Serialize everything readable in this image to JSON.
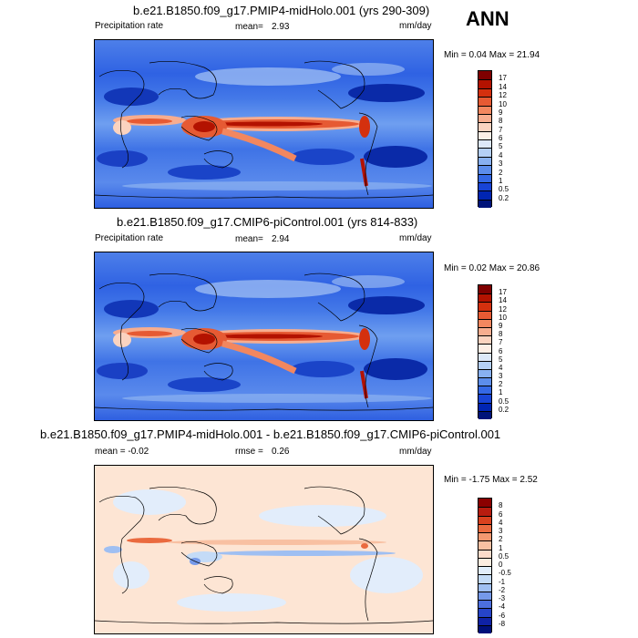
{
  "season_label": "ANN",
  "panels": [
    {
      "id": "top",
      "title": "b.e21.B1850.f09_g17.PMIP4-midHolo.001 (yrs 290-309)",
      "left_label": "Precipitation rate",
      "stat_label": "mean=",
      "stat_value": "2.93",
      "units": "mm/day",
      "minmax": "Min =   0.04 Max =  21.94",
      "colorbar": {
        "labels": [
          "17",
          "14",
          "12",
          "10",
          "9",
          "8",
          "7",
          "6",
          "5",
          "4",
          "3",
          "2",
          "1",
          "0.5",
          "0.2"
        ],
        "colors": [
          "#7f0000",
          "#b31200",
          "#d4300e",
          "#e65a33",
          "#f2875f",
          "#f7ad8f",
          "#fbd3c0",
          "#fdeee6",
          "#dde8f9",
          "#b4cff6",
          "#88b0f0",
          "#5c8deb",
          "#3468e5",
          "#1844d6",
          "#0025b3",
          "#00147a"
        ]
      }
    },
    {
      "id": "middle",
      "title": "b.e21.B1850.f09_g17.CMIP6-piControl.001 (yrs 814-833)",
      "left_label": "Precipitation rate",
      "stat_label": "mean=",
      "stat_value": "2.94",
      "units": "mm/day",
      "minmax": "Min =   0.02 Max =  20.86",
      "colorbar": {
        "labels": [
          "17",
          "14",
          "12",
          "10",
          "9",
          "8",
          "7",
          "6",
          "5",
          "4",
          "3",
          "2",
          "1",
          "0.5",
          "0.2"
        ],
        "colors": [
          "#7f0000",
          "#b31200",
          "#d4300e",
          "#e65a33",
          "#f2875f",
          "#f7ad8f",
          "#fbd3c0",
          "#fdeee6",
          "#dde8f9",
          "#b4cff6",
          "#88b0f0",
          "#5c8deb",
          "#3468e5",
          "#1844d6",
          "#0025b3",
          "#00147a"
        ]
      }
    },
    {
      "id": "bottom",
      "title": "b.e21.B1850.f09_g17.PMIP4-midHolo.001 - b.e21.B1850.f09_g17.CMIP6-piControl.001",
      "left_label": "mean =  -0.02",
      "stat_label": "rmse =",
      "stat_value": "0.26",
      "units": "mm/day",
      "minmax": "Min =  -1.75 Max =   2.52",
      "colorbar": {
        "labels": [
          "8",
          "6",
          "4",
          "3",
          "2",
          "1",
          "0.5",
          "0",
          "-0.5",
          "-1",
          "-2",
          "-3",
          "-4",
          "-6",
          "-8"
        ],
        "colors": [
          "#8b0000",
          "#b81c0f",
          "#d9411e",
          "#ea6a3f",
          "#f39870",
          "#f8c0a2",
          "#fcdccb",
          "#fdece0",
          "#e2edfb",
          "#c4dbf7",
          "#9fbff2",
          "#7599ea",
          "#4c6fdf",
          "#2644c9",
          "#0f22a6",
          "#00107a"
        ]
      }
    }
  ]
}
